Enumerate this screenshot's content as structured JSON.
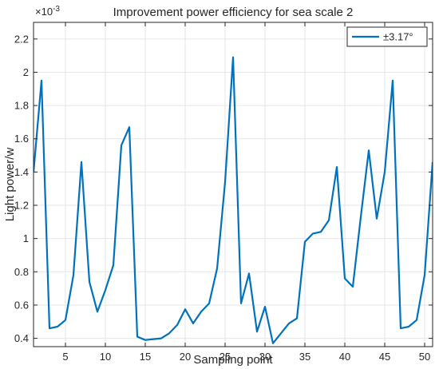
{
  "chart_data": {
    "type": "line",
    "title": "Improvement power efficiency for sea scale 2",
    "xlabel": "Sampling point",
    "ylabel": "Light power/w",
    "y_exponent_label": "×10",
    "y_exponent_power": "-3",
    "xlim": [
      1,
      51
    ],
    "ylim": [
      0.35,
      2.3
    ],
    "grid": true,
    "legend_position": "top-right",
    "x_ticks": [
      5,
      10,
      15,
      20,
      25,
      30,
      35,
      40,
      45,
      50
    ],
    "y_ticks": [
      0.4,
      0.6,
      0.8,
      1,
      1.2,
      1.4,
      1.6,
      1.8,
      2,
      2.2
    ],
    "x_tick_labels": [
      "5",
      "10",
      "15",
      "20",
      "25",
      "30",
      "35",
      "40",
      "45",
      "50"
    ],
    "y_tick_labels": [
      "0.4",
      "0.6",
      "0.8",
      "1",
      "1.2",
      "1.4",
      "1.6",
      "1.8",
      "2",
      "2.2"
    ],
    "colors": {
      "series": "#0072BD",
      "grid": "#e6e6e6",
      "axis": "#262626"
    },
    "series": [
      {
        "name": "±3.17°",
        "x": [
          1,
          2,
          3,
          4,
          5,
          6,
          7,
          8,
          9,
          10,
          11,
          12,
          13,
          14,
          15,
          16,
          17,
          18,
          19,
          20,
          21,
          22,
          23,
          24,
          25,
          26,
          27,
          28,
          29,
          30,
          31,
          32,
          33,
          34,
          35,
          36,
          37,
          38,
          39,
          40,
          41,
          42,
          43,
          44,
          45,
          46,
          47,
          48,
          49,
          50,
          51
        ],
        "values": [
          1.4,
          1.95,
          0.46,
          0.47,
          0.51,
          0.78,
          1.46,
          0.74,
          0.56,
          0.69,
          0.84,
          1.56,
          1.67,
          0.41,
          0.39,
          0.395,
          0.4,
          0.43,
          0.48,
          0.575,
          0.49,
          0.56,
          0.61,
          0.82,
          1.34,
          2.09,
          0.61,
          0.79,
          0.44,
          0.59,
          0.37,
          0.43,
          0.49,
          0.52,
          0.98,
          1.03,
          1.04,
          1.11,
          1.43,
          0.76,
          0.71,
          1.13,
          1.53,
          1.12,
          1.4,
          1.95,
          0.46,
          0.47,
          0.51,
          0.78,
          1.46
        ]
      }
    ]
  }
}
